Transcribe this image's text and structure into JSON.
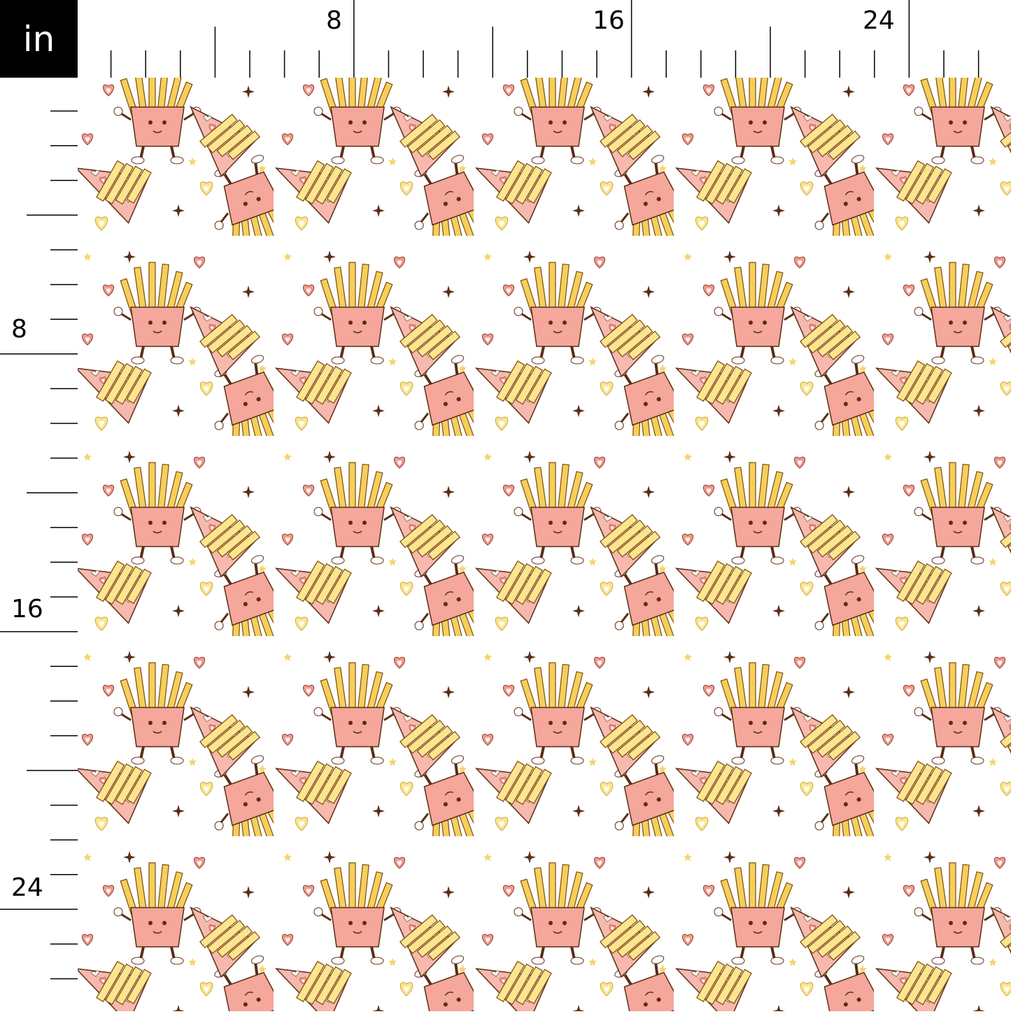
{
  "ruler": {
    "unit": "in",
    "top_labels": [
      "8",
      "16",
      "24"
    ],
    "left_labels": [
      "8",
      "16",
      "24"
    ],
    "major_every_inches": 8,
    "medium_every_inches": 4
  },
  "fabric": {
    "motifs": [
      "fries-box-character",
      "upside-down-fries-character",
      "fries-cone-wrapper",
      "heart",
      "star",
      "sparkle"
    ],
    "colors": {
      "background": "#ffffff",
      "pink": "#f4a79a",
      "light_pink": "#f7c3bb",
      "fries_yellow": "#f6cf5a",
      "pale_yellow": "#fbe58e",
      "outline_brown": "#5a2d14",
      "heart_pink": "#f29a8e",
      "ruler_unit_bg": "#000000"
    }
  }
}
